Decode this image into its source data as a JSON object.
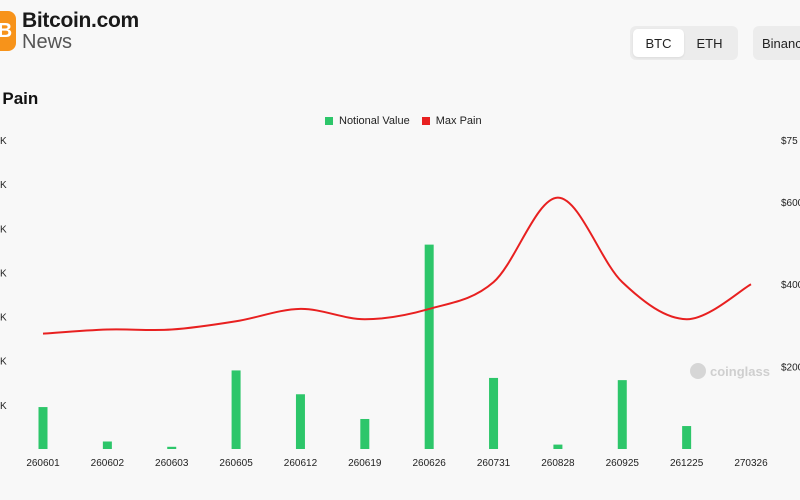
{
  "header": {
    "brand_title": "Bitcoin.com",
    "brand_sub": "News",
    "logo_glyph": "B"
  },
  "controls": {
    "asset_options": [
      "BTC",
      "ETH"
    ],
    "selected_asset": "BTC",
    "exchange": "Binanc"
  },
  "title": "t Pain",
  "legend": {
    "notional": "Notional Value",
    "maxpain": "Max Pain"
  },
  "watermark": "coinglass",
  "colors": {
    "notional": "#2dc66a",
    "maxpain": "#e82020"
  },
  "chart_data": {
    "type": "bar",
    "categories": [
      "260601",
      "260602",
      "260603",
      "260605",
      "260612",
      "260619",
      "260626",
      "260731",
      "260828",
      "260925",
      "261225",
      "270326"
    ],
    "series": [
      {
        "name": "Notional Value",
        "type": "bar",
        "axis": "left",
        "values": [
          0.95,
          0.17,
          0.05,
          1.78,
          1.24,
          0.68,
          4.63,
          1.61,
          0.1,
          1.56,
          0.52,
          0
        ]
      },
      {
        "name": "Max Pain",
        "type": "line",
        "axis": "right",
        "values": [
          56,
          58,
          58,
          62,
          68,
          63,
          68,
          81,
          122,
          81,
          63,
          80
        ]
      }
    ],
    "left_axis": {
      "ylim": [
        0,
        7
      ],
      "tick_labels": [
        "K",
        "K",
        "K",
        "K",
        "K",
        "K",
        "K"
      ]
    },
    "right_axis": {
      "ylim": [
        0,
        150
      ],
      "tick_labels": [
        "$200",
        "$400",
        "$600",
        "$75"
      ]
    },
    "legend_position": "top-center",
    "grid": false
  }
}
